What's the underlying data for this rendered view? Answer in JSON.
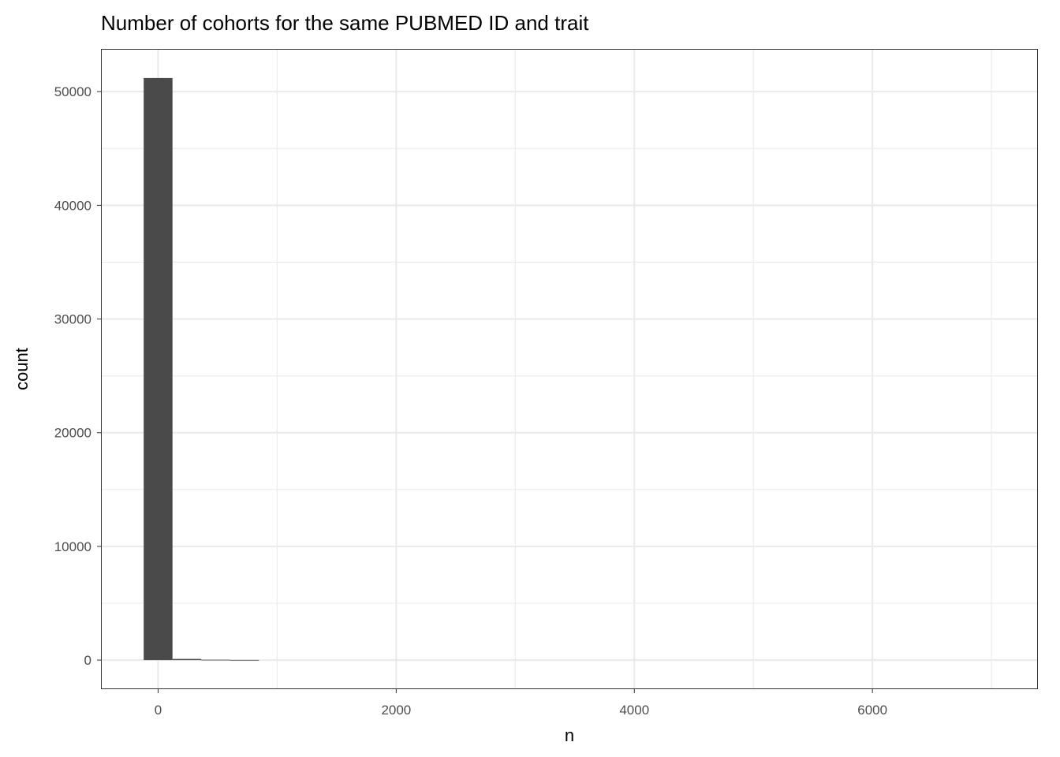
{
  "chart_data": {
    "type": "bar",
    "title": "Number of cohorts for the same PUBMED ID and trait",
    "xlabel": "n",
    "ylabel": "count",
    "binwidth": 242,
    "bins": [
      {
        "x": 0,
        "count": 51200
      },
      {
        "x": 242,
        "count": 100
      },
      {
        "x": 484,
        "count": 30
      },
      {
        "x": 726,
        "count": 10
      }
    ],
    "xlim": [
      -480,
      7390
    ],
    "ylim": [
      -2560,
      53760
    ],
    "xticks": [
      "0",
      "2000",
      "4000",
      "6000"
    ],
    "yticks": [
      "0",
      "10000",
      "20000",
      "30000",
      "40000",
      "50000"
    ],
    "grid": true,
    "bar_color": "#4a4a4a",
    "theme": "bw"
  }
}
